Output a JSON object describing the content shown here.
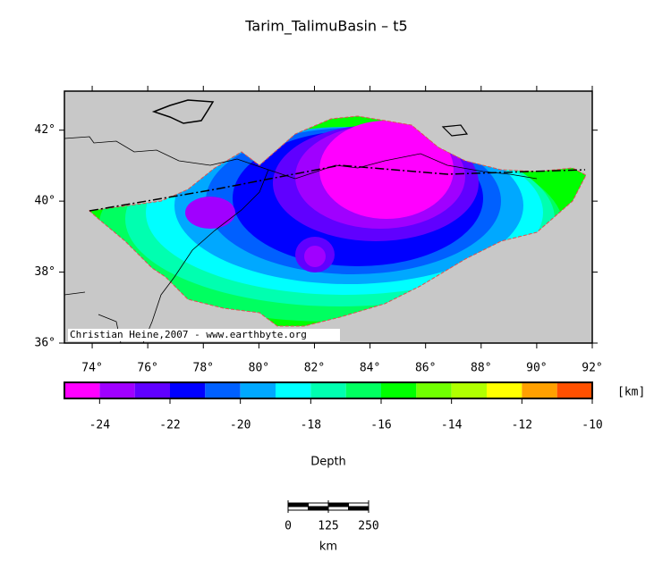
{
  "title": "Tarim_TalimuBasin – t5",
  "map": {
    "lon_range": [
      73,
      92
    ],
    "lat_range": [
      36,
      43.1
    ],
    "lon_ticks": [
      {
        "value": 74,
        "label": "74°"
      },
      {
        "value": 76,
        "label": "76°"
      },
      {
        "value": 78,
        "label": "78°"
      },
      {
        "value": 80,
        "label": "80°"
      },
      {
        "value": 82,
        "label": "82°"
      },
      {
        "value": 84,
        "label": "84°"
      },
      {
        "value": 86,
        "label": "86°"
      },
      {
        "value": 88,
        "label": "88°"
      },
      {
        "value": 90,
        "label": "90°"
      },
      {
        "value": 92,
        "label": "92°"
      }
    ],
    "lat_ticks": [
      {
        "value": 36,
        "label": "36°"
      },
      {
        "value": 38,
        "label": "38°"
      },
      {
        "value": 40,
        "label": "40°"
      },
      {
        "value": 42,
        "label": "42°"
      }
    ],
    "credit": "Christian Heine,2007 - www.earthbyte.org"
  },
  "colorbar": {
    "range": [
      -25,
      -10
    ],
    "colors": [
      "#ff00ff",
      "#a000ff",
      "#6000ff",
      "#0000ff",
      "#0060ff",
      "#00a8ff",
      "#00ffff",
      "#00ffb0",
      "#00ff60",
      "#00ff00",
      "#70ff00",
      "#b0ff00",
      "#ffff00",
      "#ffa000",
      "#ff5000"
    ],
    "ticks": [
      -24,
      -22,
      -20,
      -18,
      -16,
      -14,
      -12,
      -10
    ],
    "unit": "[km]",
    "label": "Depth"
  },
  "scale_bar": {
    "ticks": [
      0,
      125,
      250
    ],
    "unit": "km"
  }
}
